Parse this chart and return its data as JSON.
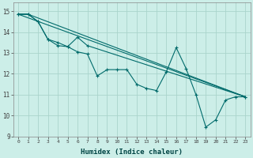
{
  "xlabel": "Humidex (Indice chaleur)",
  "background_color": "#cceee8",
  "grid_color": "#aad4cc",
  "line_color": "#006b6b",
  "xlim": [
    -0.5,
    23.5
  ],
  "ylim": [
    9,
    15.4
  ],
  "yticks": [
    9,
    10,
    11,
    12,
    13,
    14,
    15
  ],
  "xticks": [
    0,
    1,
    2,
    3,
    4,
    5,
    6,
    7,
    8,
    9,
    10,
    11,
    12,
    13,
    14,
    15,
    16,
    17,
    18,
    19,
    20,
    21,
    22,
    23
  ],
  "series1_x": [
    0,
    1,
    2,
    3,
    4,
    5,
    6,
    7,
    8,
    9,
    10,
    11,
    12,
    13,
    14,
    15,
    16,
    17,
    18,
    19,
    20,
    21,
    22,
    23
  ],
  "series1_y": [
    14.85,
    14.85,
    14.5,
    13.65,
    13.35,
    13.3,
    13.05,
    12.95,
    11.9,
    12.2,
    12.2,
    12.2,
    11.5,
    11.3,
    11.2,
    12.1,
    13.25,
    12.25,
    11.0,
    9.45,
    9.8,
    10.75,
    10.9,
    10.9
  ],
  "series2_x": [
    0,
    1,
    2,
    3,
    4,
    5,
    6,
    7,
    23
  ],
  "series2_y": [
    14.85,
    14.85,
    14.5,
    13.65,
    13.5,
    13.3,
    13.75,
    13.35,
    10.9
  ],
  "series3_x": [
    0,
    1,
    23
  ],
  "series3_y": [
    14.85,
    14.85,
    10.9
  ],
  "series4_x": [
    0,
    23
  ],
  "series4_y": [
    14.85,
    10.9
  ]
}
